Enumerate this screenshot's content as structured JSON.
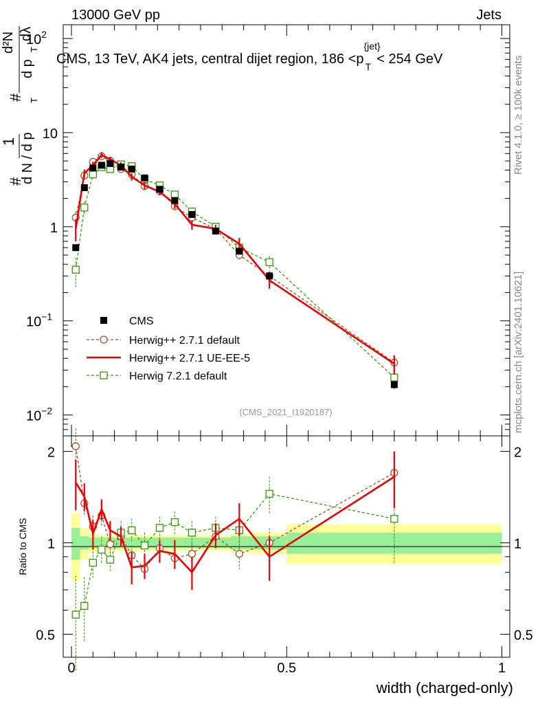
{
  "header": {
    "left": "13000 GeV pp",
    "right": "Jets"
  },
  "chart_data": [
    {
      "type": "line",
      "title": "CMS, 13 TeV, AK4 jets, central dijet region, 186 <p_T^{jet}< 254 GeV",
      "title_parts": {
        "main": "CMS, 13 TeV, AK4 jets, central dijet region, 186 <p",
        "sup": "{jet}",
        "sub": "T",
        "tail": "< 254 GeV"
      },
      "ylabel": "1/dN dN/dp_T d²N/dp_T dλ",
      "ylabel_parts": {
        "hash": "#",
        "one": "1",
        "dN": "d N / d p",
        "T": "T",
        "num": "d²N",
        "den": "d p",
        "dl": "dλ"
      },
      "yscale": "log",
      "ylim": [
        0.006,
        140
      ],
      "xlim": [
        -0.015,
        1.0
      ],
      "y_ticks": [
        {
          "value": 0.01,
          "label": "10",
          "exp": "−2"
        },
        {
          "value": 0.1,
          "label": "10",
          "exp": "−1"
        },
        {
          "value": 1,
          "label": "1",
          "exp": ""
        },
        {
          "value": 10,
          "label": "10",
          "exp": ""
        },
        {
          "value": 100,
          "label": "10",
          "exp": "2"
        }
      ],
      "watermark": "(CMS_2021_I1920187)",
      "x": [
        0.01,
        0.03,
        0.05,
        0.07,
        0.09,
        0.115,
        0.14,
        0.17,
        0.205,
        0.24,
        0.28,
        0.335,
        0.39,
        0.46,
        0.75
      ],
      "cms_bins": [
        0,
        0.02,
        0.04,
        0.06,
        0.08,
        0.1,
        0.13,
        0.15,
        0.19,
        0.22,
        0.26,
        0.3,
        0.37,
        0.41,
        0.5,
        1.0
      ],
      "series": [
        {
          "name": "CMS",
          "color": "#000000",
          "marker": "filled-square",
          "line": "none",
          "values": [
            0.6,
            2.6,
            4.2,
            4.5,
            4.7,
            4.3,
            4.1,
            3.3,
            2.5,
            1.9,
            1.35,
            0.9,
            0.55,
            0.3,
            0.021
          ],
          "err": [
            0.03,
            0.1,
            0.15,
            0.15,
            0.15,
            0.15,
            0.12,
            0.1,
            0.08,
            0.06,
            0.05,
            0.04,
            0.03,
            0.02,
            0.002
          ]
        },
        {
          "name": "Herwig++ 2.7.1 default",
          "color": "#a0522d",
          "marker": "open-circle",
          "line": "dashed",
          "values": [
            1.25,
            3.5,
            4.9,
            5.6,
            5.0,
            4.1,
            3.6,
            2.7,
            2.4,
            1.65,
            1.25,
            0.95,
            0.5,
            0.3,
            0.036
          ],
          "err": [
            0.2,
            0.3,
            0.35,
            0.35,
            0.3,
            0.3,
            0.25,
            0.2,
            0.2,
            0.15,
            0.1,
            0.08,
            0.06,
            0.04,
            0.007
          ]
        },
        {
          "name": "Herwig++ 2.7.1 UE-EE-5",
          "color": "#ee0000",
          "marker": "none",
          "line": "solid",
          "values": [
            0.95,
            3.7,
            4.5,
            5.8,
            5.2,
            4.5,
            3.4,
            2.75,
            2.35,
            1.75,
            1.05,
            0.95,
            0.66,
            0.27,
            0.035
          ],
          "err": [
            0.25,
            0.35,
            0.4,
            0.4,
            0.35,
            0.35,
            0.3,
            0.25,
            0.2,
            0.2,
            0.12,
            0.1,
            0.1,
            0.05,
            0.008
          ]
        },
        {
          "name": "Herwig 7.2.1 default",
          "color": "#339900",
          "marker": "open-square",
          "line": "dashed",
          "values": [
            0.35,
            1.6,
            3.6,
            4.3,
            4.1,
            4.6,
            4.4,
            3.2,
            2.75,
            2.2,
            1.45,
            1.0,
            0.6,
            0.42,
            0.025
          ],
          "err": [
            0.12,
            0.25,
            0.3,
            0.35,
            0.3,
            0.3,
            0.3,
            0.25,
            0.2,
            0.2,
            0.12,
            0.1,
            0.08,
            0.07,
            0.006
          ]
        }
      ]
    },
    {
      "type": "line",
      "ylabel": "Ratio to CMS",
      "xlabel": "width (charged-only)",
      "ylim": [
        0.42,
        2.25
      ],
      "xlim": [
        -0.015,
        1.0
      ],
      "x_ticks": [
        {
          "value": 0,
          "label": "0"
        },
        {
          "value": 0.5,
          "label": "0.5"
        },
        {
          "value": 1,
          "label": "1"
        }
      ],
      "y_ticks": [
        {
          "value": 0.5,
          "label": "0.5"
        },
        {
          "value": 1,
          "label": "1"
        },
        {
          "value": 2,
          "label": "2"
        }
      ],
      "cms_bins": [
        0,
        0.02,
        0.04,
        0.06,
        0.08,
        0.1,
        0.13,
        0.15,
        0.19,
        0.22,
        0.26,
        0.3,
        0.37,
        0.41,
        0.5,
        1.0
      ],
      "band_stat": [
        0.12,
        0.05,
        0.04,
        0.04,
        0.04,
        0.04,
        0.04,
        0.04,
        0.04,
        0.04,
        0.04,
        0.04,
        0.05,
        0.05,
        0.08
      ],
      "band_total": [
        0.25,
        0.12,
        0.07,
        0.06,
        0.06,
        0.06,
        0.06,
        0.06,
        0.06,
        0.06,
        0.06,
        0.06,
        0.07,
        0.08,
        0.15
      ],
      "band_colors": {
        "stat": "#99ee99",
        "total": "#ffff99"
      },
      "series": [
        {
          "name": "Herwig++ 2.7.1 default",
          "color": "#a0522d",
          "marker": "open-circle",
          "line": "dashed",
          "values": [
            2.08,
            1.35,
            1.13,
            1.23,
            0.99,
            1.05,
            0.91,
            0.82,
            0.96,
            0.89,
            0.92,
            1.05,
            0.92,
            1.0,
            1.7
          ],
          "err": [
            0.3,
            0.12,
            0.1,
            0.09,
            0.08,
            0.08,
            0.07,
            0.06,
            0.08,
            0.07,
            0.07,
            0.08,
            0.1,
            0.12,
            0.3
          ]
        },
        {
          "name": "Herwig++ 2.7.1 UE-EE-5",
          "color": "#ee0000",
          "marker": "none",
          "line": "solid",
          "values": [
            1.58,
            1.42,
            1.07,
            1.29,
            1.1,
            1.05,
            0.83,
            0.84,
            0.94,
            0.92,
            0.8,
            1.06,
            1.2,
            0.9,
            1.65
          ],
          "err": [
            0.3,
            0.15,
            0.12,
            0.1,
            0.08,
            0.08,
            0.1,
            0.08,
            0.08,
            0.1,
            0.1,
            0.1,
            0.15,
            0.15,
            0.35
          ]
        },
        {
          "name": "Herwig 7.2.1 default",
          "color": "#339900",
          "marker": "open-square",
          "line": "dashed",
          "values": [
            0.58,
            0.62,
            0.86,
            0.95,
            0.88,
            1.08,
            1.1,
            0.98,
            1.12,
            1.17,
            1.08,
            1.12,
            1.1,
            1.45,
            1.2
          ],
          "err": [
            0.2,
            0.15,
            0.1,
            0.1,
            0.08,
            0.1,
            0.1,
            0.1,
            0.1,
            0.1,
            0.1,
            0.1,
            0.12,
            0.2,
            0.35
          ]
        }
      ]
    }
  ],
  "side_labels": {
    "rivet": "Rivet 4.1.0, ≥ 100k events",
    "mcplots": "mcplots.cern.ch [arXiv:2401.10621]"
  }
}
